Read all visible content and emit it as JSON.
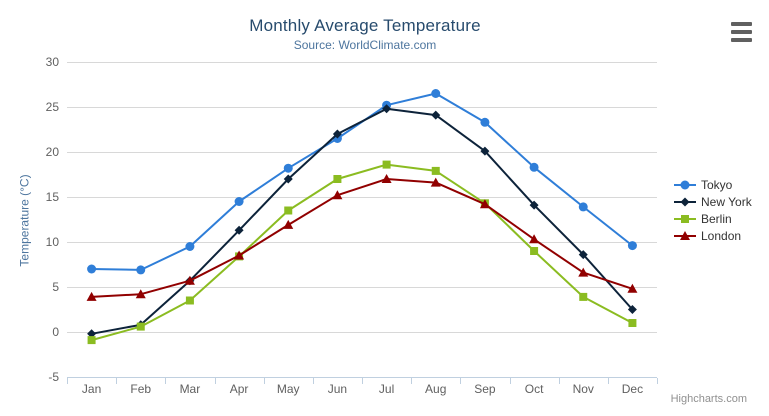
{
  "header": {
    "title": "Monthly Average Temperature",
    "subtitle": "Source: WorldClimate.com"
  },
  "credits": {
    "label": "Highcharts.com"
  },
  "context_menu": {
    "icon": "hamburger-icon"
  },
  "colors": {
    "title": "#274b6d",
    "subtitle": "#4d759e",
    "axis_title": "#4d759e",
    "axis_labels": "#606060",
    "gridline": "#d8d8d8",
    "axis_line": "#c0d0e0",
    "legend_text": "#333333",
    "credits_text": "#909090",
    "menu_icon": "#606060"
  },
  "chart_data": {
    "type": "line",
    "title": "Monthly Average Temperature",
    "subtitle": "Source: WorldClimate.com",
    "categories": [
      "Jan",
      "Feb",
      "Mar",
      "Apr",
      "May",
      "Jun",
      "Jul",
      "Aug",
      "Sep",
      "Oct",
      "Nov",
      "Dec"
    ],
    "xlabel": "",
    "ylabel": "Temperature (°C)",
    "ylim": [
      -5,
      30
    ],
    "yticks": [
      -5,
      0,
      5,
      10,
      15,
      20,
      25,
      30
    ],
    "grid": true,
    "legend_position": "right",
    "series": [
      {
        "name": "Tokyo",
        "color": "#2f7ed8",
        "marker": "circle",
        "values": [
          7.0,
          6.9,
          9.5,
          14.5,
          18.2,
          21.5,
          25.2,
          26.5,
          23.3,
          18.3,
          13.9,
          9.6
        ]
      },
      {
        "name": "New York",
        "color": "#0d233a",
        "marker": "diamond",
        "values": [
          -0.2,
          0.8,
          5.7,
          11.3,
          17.0,
          22.0,
          24.8,
          24.1,
          20.1,
          14.1,
          8.6,
          2.5
        ]
      },
      {
        "name": "Berlin",
        "color": "#8bbc21",
        "marker": "square",
        "values": [
          -0.9,
          0.6,
          3.5,
          8.4,
          13.5,
          17.0,
          18.6,
          17.9,
          14.3,
          9.0,
          3.9,
          1.0
        ]
      },
      {
        "name": "London",
        "color": "#910000",
        "marker": "triangle",
        "values": [
          3.9,
          4.2,
          5.7,
          8.5,
          11.9,
          15.2,
          17.0,
          16.6,
          14.2,
          10.3,
          6.6,
          4.8
        ]
      }
    ]
  }
}
